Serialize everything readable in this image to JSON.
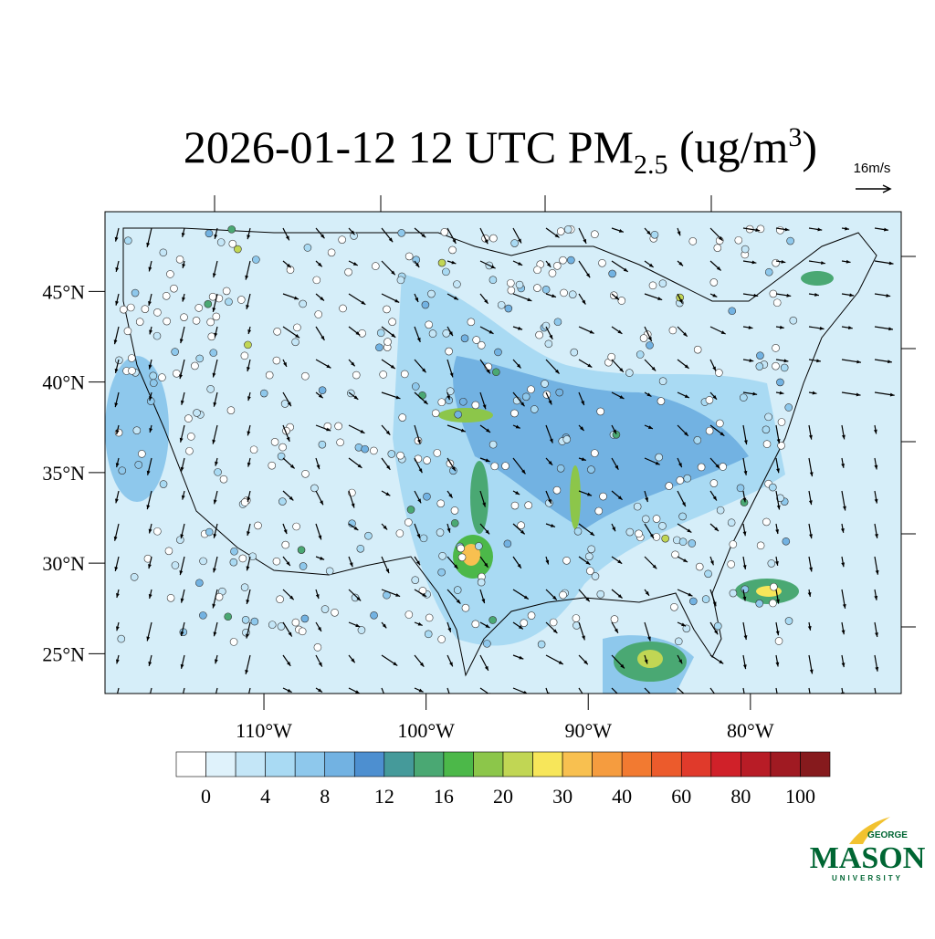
{
  "title": {
    "main": "2026-01-12 12 UTC PM",
    "sub": "2.5",
    "unit_open": " (ug/m",
    "sup": "3",
    "unit_close": ")"
  },
  "vector_reference": "16m/s",
  "map": {
    "latlim": [
      22.8,
      49.4
    ],
    "lonlim": [
      -119.8,
      -70.7
    ],
    "lat_ticks": [
      {
        "value": 45,
        "label": "45°N"
      },
      {
        "value": 40,
        "label": "40°N"
      },
      {
        "value": 35,
        "label": "35°N"
      },
      {
        "value": 30,
        "label": "30°N"
      },
      {
        "value": 25,
        "label": "25°N"
      }
    ],
    "lon_ticks": [
      {
        "value": -110,
        "label": "110°W"
      },
      {
        "value": -100,
        "label": "100°W"
      },
      {
        "value": -90,
        "label": "90°W"
      },
      {
        "value": -80,
        "label": "80°W"
      }
    ]
  },
  "colorbar": {
    "labels": [
      0,
      4,
      8,
      12,
      16,
      20,
      30,
      40,
      60,
      80,
      100
    ],
    "colors": [
      "#ffffff",
      "#dff2fb",
      "#c4e6f7",
      "#a9daf3",
      "#8ec8ec",
      "#72b2e2",
      "#4d8fd0",
      "#459a9a",
      "#4aa873",
      "#4cb849",
      "#8cc64a",
      "#c1d654",
      "#f7e65a",
      "#f8c050",
      "#f59c3f",
      "#f27a31",
      "#ec5b2c",
      "#e03a2b",
      "#d02129",
      "#b81c26",
      "#a01a22",
      "#861a1d"
    ]
  },
  "logo": {
    "top": "GEORGE",
    "main": "MASON",
    "bottom": "UNIVERSITY"
  }
}
